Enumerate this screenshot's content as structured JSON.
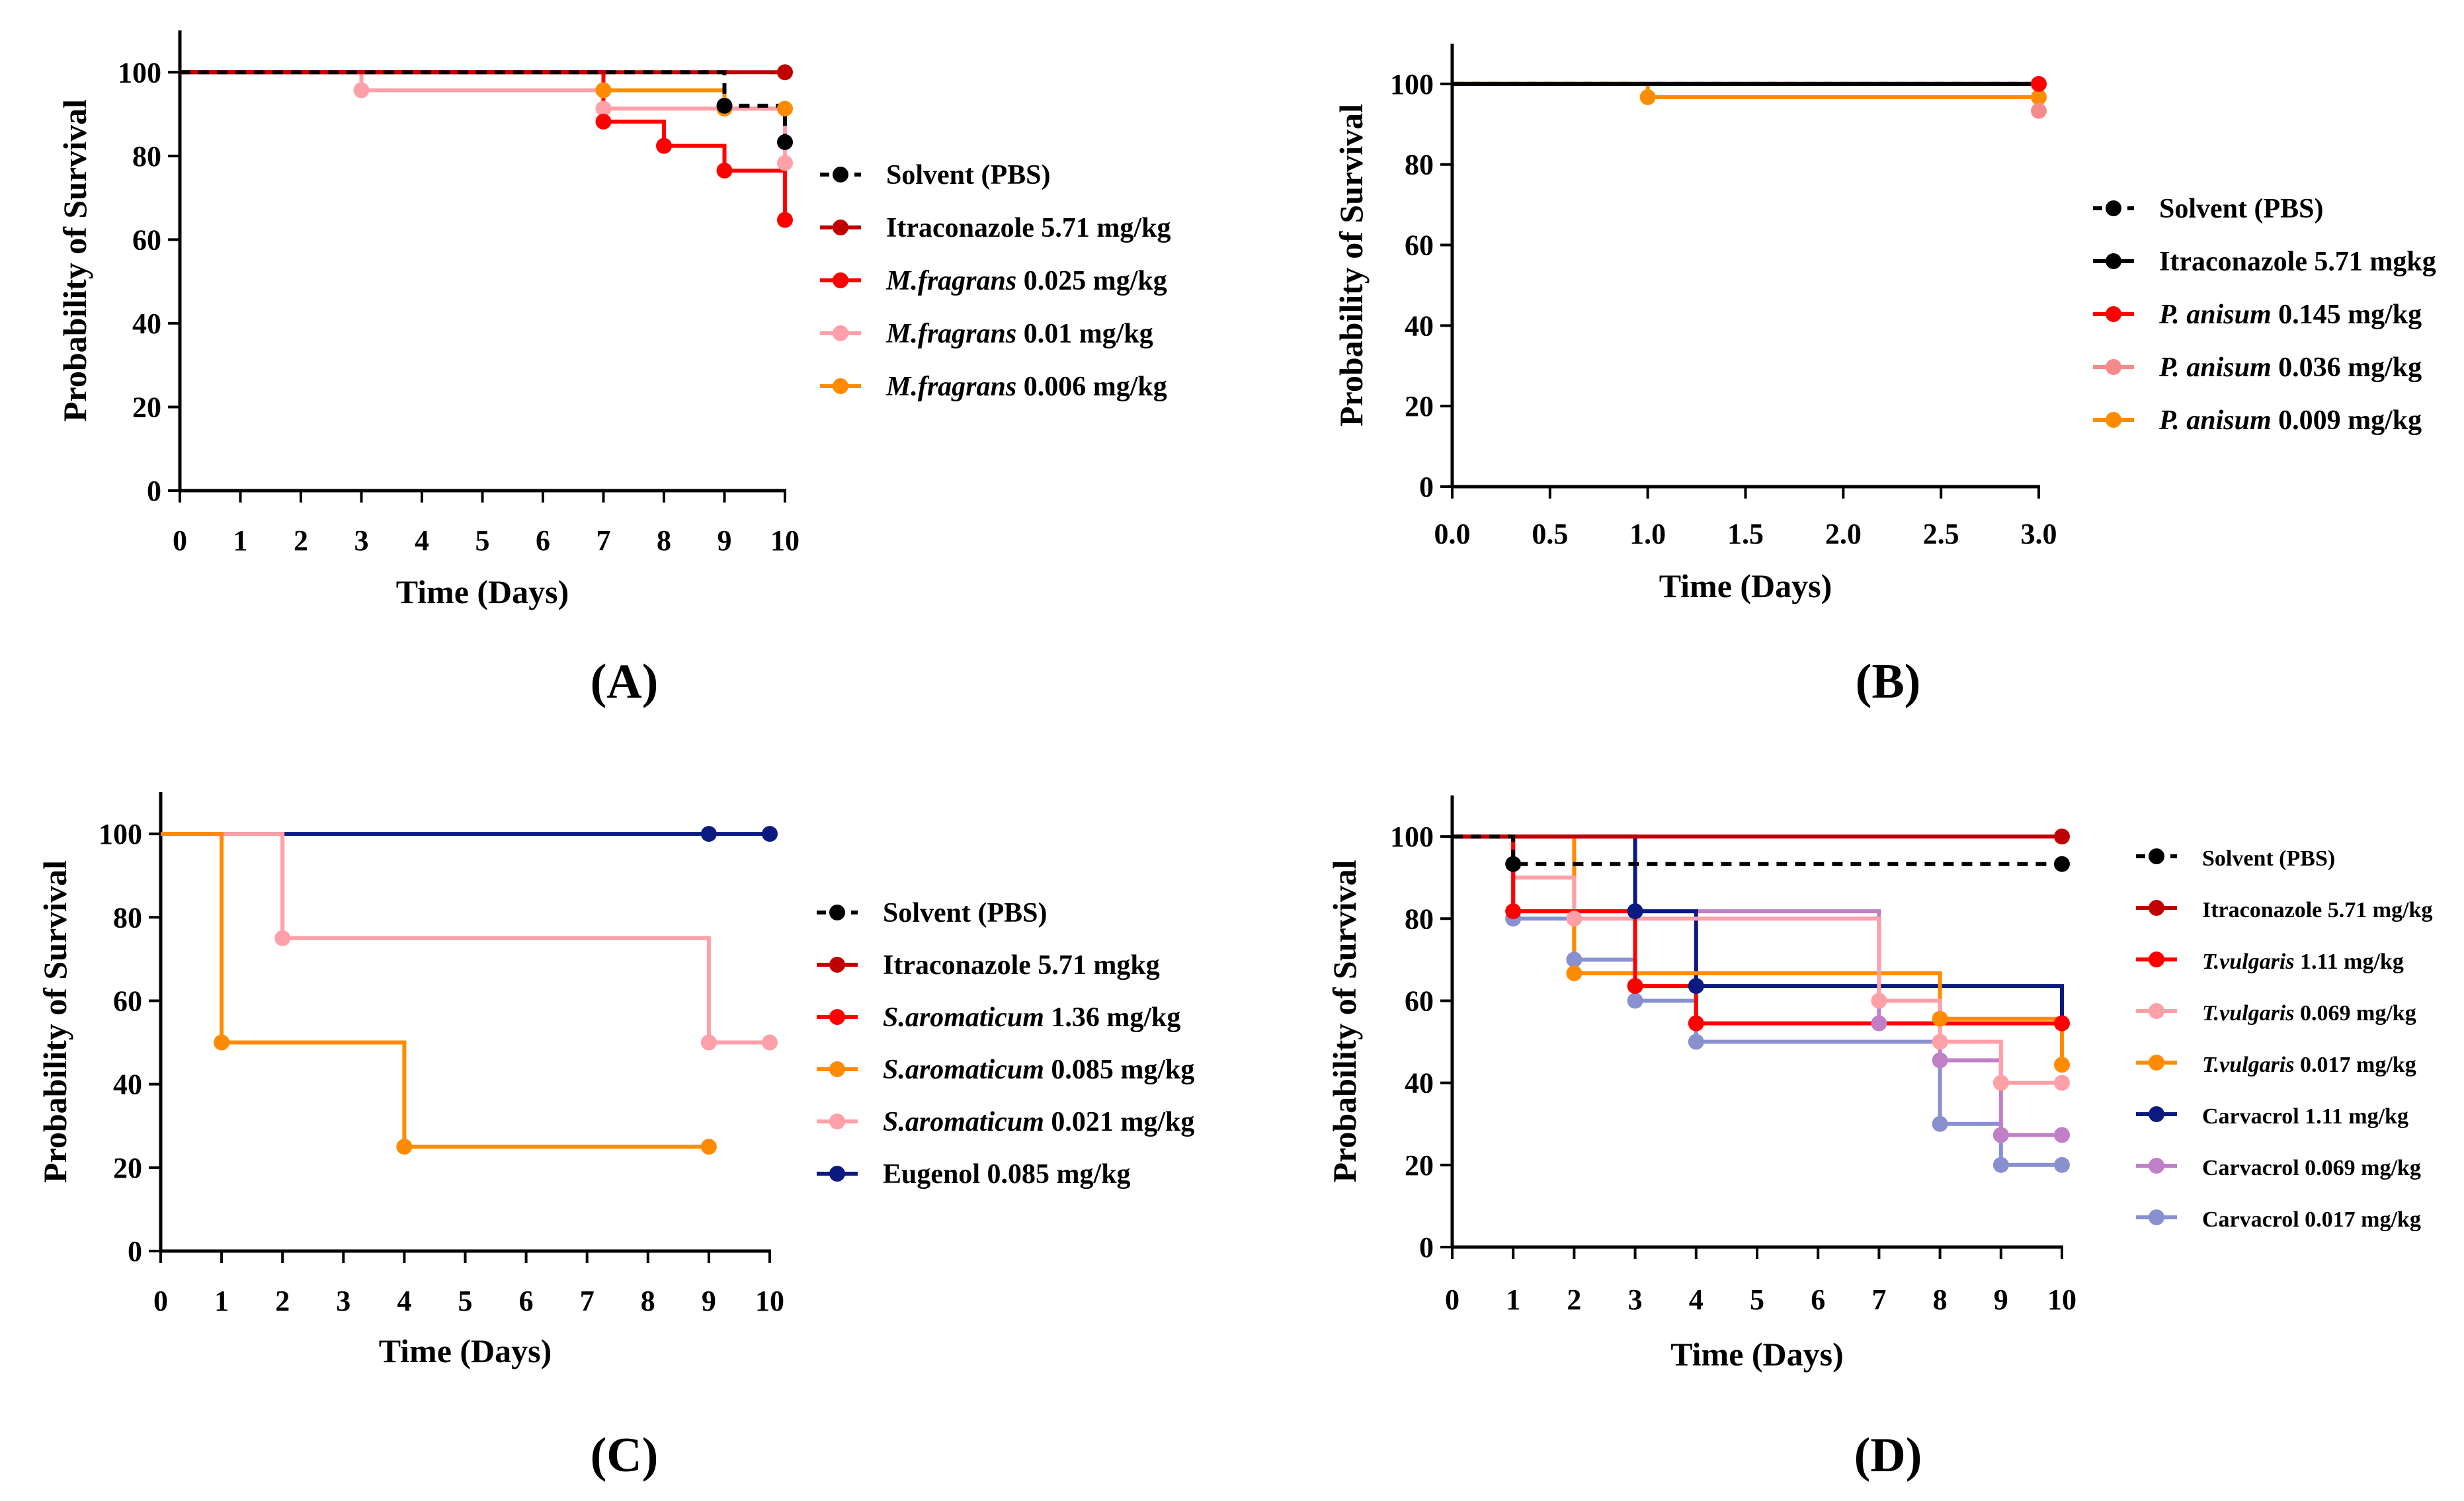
{
  "figure": {
    "panels": [
      "A",
      "B",
      "C",
      "D"
    ]
  },
  "chart_data": [
    {
      "type": "line",
      "subtype": "kaplan-meier",
      "panel_label": "(A)",
      "xlabel": "Time (Days)",
      "ylabel": "Probability of Survival",
      "xlim": [
        0,
        10
      ],
      "ylim": [
        0,
        110
      ],
      "xticks": [
        "0",
        "1",
        "2",
        "3",
        "4",
        "5",
        "6",
        "7",
        "8",
        "9",
        "10"
      ],
      "yticks": [
        "0",
        "20",
        "40",
        "60",
        "80",
        "100"
      ],
      "legend_position": "right",
      "series": [
        {
          "name": "Solvent (PBS)",
          "legend_rest": "",
          "italic": "",
          "color": "#000000",
          "dashed": true,
          "steps": [
            [
              0,
              100
            ],
            [
              9,
              100
            ],
            [
              9,
              92
            ],
            [
              10,
              92
            ],
            [
              10,
              83.3
            ]
          ],
          "markers": [
            [
              9,
              92
            ],
            [
              10,
              83.3
            ]
          ]
        },
        {
          "name": "Itraconazole 5.71 mg/kg",
          "italic": "",
          "legend_rest": "Itraconazole 5.71 mg/kg",
          "color": "#c00000",
          "dashed": false,
          "steps": [
            [
              0,
              100
            ],
            [
              10,
              100
            ]
          ],
          "markers": [
            [
              10,
              100
            ]
          ]
        },
        {
          "name": "M.fragrans 0.025 mg/kg",
          "italic": "M.fragrans",
          "legend_rest": " 0.025 mg/kg",
          "color": "#ff0000",
          "dashed": false,
          "steps": [
            [
              0,
              100
            ],
            [
              7,
              100
            ],
            [
              7,
              88.2
            ],
            [
              8,
              88.2
            ],
            [
              8,
              82.4
            ],
            [
              9,
              82.4
            ],
            [
              9,
              76.5
            ],
            [
              10,
              76.5
            ],
            [
              10,
              64.7
            ]
          ],
          "markers": [
            [
              7,
              88.2
            ],
            [
              8,
              82.4
            ],
            [
              9,
              76.5
            ],
            [
              10,
              64.7
            ]
          ]
        },
        {
          "name": "M.fragrans 0.01 mg/kg",
          "italic": "M.fragrans",
          "legend_rest": " 0.01 mg/kg",
          "color": "#ffa0a8",
          "dashed": false,
          "steps": [
            [
              0,
              100
            ],
            [
              3,
              100
            ],
            [
              3,
              95.7
            ],
            [
              7,
              95.7
            ],
            [
              7,
              91.3
            ],
            [
              10,
              91.3
            ],
            [
              10,
              78.3
            ]
          ],
          "markers": [
            [
              3,
              95.7
            ],
            [
              7,
              91.3
            ],
            [
              10,
              78.3
            ]
          ]
        },
        {
          "name": "M.fragrans 0.006 mg/kg",
          "italic": "M.fragrans",
          "legend_rest": " 0.006 mg/kg",
          "color": "#ff8c00",
          "dashed": false,
          "steps": [
            [
              0,
              100
            ],
            [
              7,
              100
            ],
            [
              7,
              95.7
            ],
            [
              9,
              95.7
            ],
            [
              9,
              91.3
            ],
            [
              10,
              91.3
            ]
          ],
          "markers": [
            [
              7,
              95.7
            ],
            [
              9,
              91.3
            ],
            [
              10,
              91.3
            ]
          ]
        }
      ]
    },
    {
      "type": "line",
      "subtype": "kaplan-meier",
      "panel_label": "(B)",
      "xlabel": "Time (Days)",
      "ylabel": "Probability of Survival",
      "xlim": [
        0,
        3
      ],
      "ylim": [
        0,
        110
      ],
      "xticks": [
        "0.0",
        "0.5",
        "1.0",
        "1.5",
        "2.0",
        "2.5",
        "3.0"
      ],
      "yticks": [
        "0",
        "20",
        "40",
        "60",
        "80",
        "100"
      ],
      "legend_position": "right",
      "series": [
        {
          "name": "Solvent (PBS)",
          "italic": "",
          "legend_rest": "Solvent (PBS)",
          "color": "#000000",
          "dashed": true,
          "steps": [
            [
              0,
              100
            ],
            [
              3,
              100
            ]
          ],
          "markers": []
        },
        {
          "name": "Itraconazole 5.71 mgkg",
          "italic": "",
          "legend_rest": "Itraconazole 5.71 mgkg",
          "color": "#000000",
          "dashed": false,
          "steps": [
            [
              0,
              100
            ],
            [
              3,
              100
            ]
          ],
          "markers": []
        },
        {
          "name": "P. anisum 0.145 mg/kg",
          "italic": "P. anisum",
          "legend_rest": " 0.145 mg/kg",
          "color": "#ff0000",
          "dashed": false,
          "steps": [
            [
              0,
              100
            ],
            [
              3,
              100
            ]
          ],
          "markers": [
            [
              3,
              100
            ]
          ]
        },
        {
          "name": "P. anisum 0.036 mg/kg",
          "italic": "P. anisum",
          "legend_rest": " 0.036 mg/kg",
          "color": "#f58a8a",
          "dashed": false,
          "steps": [
            [
              0,
              100
            ],
            [
              3,
              100
            ],
            [
              3,
              93.3
            ]
          ],
          "markers": [
            [
              3,
              93.3
            ]
          ]
        },
        {
          "name": "P. anisum 0.009 mg/kg",
          "italic": "P. anisum",
          "legend_rest": " 0.009 mg/kg",
          "color": "#ff8c00",
          "dashed": false,
          "steps": [
            [
              0,
              100
            ],
            [
              1,
              100
            ],
            [
              1,
              96.7
            ],
            [
              3,
              96.7
            ]
          ],
          "markers": [
            [
              1,
              96.7
            ],
            [
              3,
              96.7
            ]
          ]
        }
      ]
    },
    {
      "type": "line",
      "subtype": "kaplan-meier",
      "panel_label": "(C)",
      "xlabel": "Time (Days)",
      "ylabel": "Probability of Survival",
      "xlim": [
        0,
        10
      ],
      "ylim": [
        0,
        110
      ],
      "xticks": [
        "0",
        "1",
        "2",
        "3",
        "4",
        "5",
        "6",
        "7",
        "8",
        "9",
        "10"
      ],
      "yticks": [
        "0",
        "20",
        "40",
        "60",
        "80",
        "100"
      ],
      "legend_position": "right",
      "series": [
        {
          "name": "Solvent (PBS)",
          "italic": "",
          "legend_rest": "Solvent (PBS)",
          "color": "#000000",
          "dashed": true,
          "steps": [],
          "markers": []
        },
        {
          "name": "Itraconazole 5.71 mgkg",
          "italic": "",
          "legend_rest": "Itraconazole 5.71 mgkg",
          "color": "#c00000",
          "dashed": false,
          "steps": [],
          "markers": []
        },
        {
          "name": "S.aromaticum 1.36 mg/kg",
          "italic": "S.aromaticum",
          "legend_rest": " 1.36 mg/kg",
          "color": "#ff0000",
          "dashed": false,
          "steps": [],
          "markers": []
        },
        {
          "name": "S.aromaticum 0.085 mg/kg",
          "italic": "S.aromaticum",
          "legend_rest": " 0.085 mg/kg",
          "color": "#ff8c00",
          "dashed": false,
          "steps": [
            [
              0,
              100
            ],
            [
              1,
              100
            ],
            [
              1,
              50
            ],
            [
              4,
              50
            ],
            [
              4,
              25
            ],
            [
              9,
              25
            ]
          ],
          "markers": [
            [
              1,
              50
            ],
            [
              4,
              25
            ],
            [
              9,
              25
            ]
          ]
        },
        {
          "name": "S.aromaticum 0.021 mg/kg",
          "italic": "S.aromaticum",
          "legend_rest": " 0.021 mg/kg",
          "color": "#ffa0a8",
          "dashed": false,
          "steps": [
            [
              0,
              100
            ],
            [
              2,
              100
            ],
            [
              2,
              75
            ],
            [
              9,
              75
            ],
            [
              9,
              50
            ],
            [
              10,
              50
            ]
          ],
          "markers": [
            [
              2,
              75
            ],
            [
              9,
              50
            ],
            [
              10,
              50
            ]
          ]
        },
        {
          "name": "Eugenol 0.085 mg/kg",
          "italic": "",
          "legend_rest": "Eugenol 0.085 mg/kg",
          "color": "#0b1a80",
          "dashed": false,
          "steps": [
            [
              0,
              100
            ],
            [
              10,
              100
            ]
          ],
          "markers": [
            [
              9,
              100
            ],
            [
              10,
              100
            ]
          ]
        }
      ]
    },
    {
      "type": "line",
      "subtype": "kaplan-meier",
      "panel_label": "(D)",
      "xlabel": "Time (Days)",
      "ylabel": "Probability of Survival",
      "xlim": [
        0,
        10
      ],
      "ylim": [
        0,
        110
      ],
      "xticks": [
        "0",
        "1",
        "2",
        "3",
        "4",
        "5",
        "6",
        "7",
        "8",
        "9",
        "10"
      ],
      "yticks": [
        "0",
        "20",
        "40",
        "60",
        "80",
        "100"
      ],
      "legend_position": "right",
      "series": [
        {
          "name": "Solvent (PBS)",
          "italic": "",
          "legend_rest": "Solvent (PBS)",
          "color": "#000000",
          "dashed": true,
          "steps": [
            [
              0,
              100
            ],
            [
              1,
              100
            ],
            [
              1,
              93.3
            ],
            [
              10,
              93.3
            ]
          ],
          "markers": [
            [
              1,
              93.3
            ],
            [
              10,
              93.3
            ]
          ]
        },
        {
          "name": "Itraconazole 5.71 mg/kg",
          "italic": "",
          "legend_rest": "Itraconazole 5.71 mg/kg",
          "color": "#c00000",
          "dashed": false,
          "steps": [
            [
              0,
              100
            ],
            [
              10,
              100
            ]
          ],
          "markers": [
            [
              10,
              100
            ]
          ]
        },
        {
          "name": "T.vulgaris 1.11 mg/kg",
          "italic": "T.vulgaris",
          "legend_rest": " 1.11 mg/kg",
          "color": "#ff0000",
          "dashed": false,
          "steps": [
            [
              0,
              100
            ],
            [
              1,
              100
            ],
            [
              1,
              81.8
            ],
            [
              3,
              81.8
            ],
            [
              3,
              63.6
            ],
            [
              4,
              63.6
            ],
            [
              4,
              54.5
            ],
            [
              10,
              54.5
            ]
          ],
          "markers": [
            [
              1,
              81.8
            ],
            [
              3,
              63.6
            ],
            [
              4,
              54.5
            ],
            [
              10,
              54.5
            ]
          ]
        },
        {
          "name": "T.vulgaris 0.069 mg/kg",
          "italic": "T.vulgaris",
          "legend_rest": " 0.069 mg/kg",
          "color": "#ffa0a8",
          "dashed": false,
          "steps": [
            [
              0,
              100
            ],
            [
              1,
              100
            ],
            [
              1,
              90
            ],
            [
              2,
              90
            ],
            [
              2,
              80
            ],
            [
              7,
              80
            ],
            [
              7,
              60
            ],
            [
              8,
              60
            ],
            [
              8,
              50
            ],
            [
              9,
              50
            ],
            [
              9,
              40
            ],
            [
              10,
              40
            ]
          ],
          "markers": [
            [
              2,
              80
            ],
            [
              7,
              60
            ],
            [
              8,
              50
            ],
            [
              9,
              40
            ],
            [
              10,
              40
            ]
          ]
        },
        {
          "name": "T.vulgaris 0.017 mg/kg",
          "italic": "T.vulgaris",
          "legend_rest": " 0.017 mg/kg",
          "color": "#ff8c00",
          "dashed": false,
          "steps": [
            [
              0,
              100
            ],
            [
              2,
              100
            ],
            [
              2,
              66.7
            ],
            [
              8,
              66.7
            ],
            [
              8,
              55.6
            ],
            [
              10,
              55.6
            ],
            [
              10,
              44.4
            ]
          ],
          "markers": [
            [
              2,
              66.7
            ],
            [
              8,
              55.6
            ],
            [
              10,
              44.4
            ]
          ]
        },
        {
          "name": "Carvacrol 1.11 mg/kg",
          "italic": "",
          "legend_rest": "Carvacrol 1.11 mg/kg",
          "color": "#0b1a80",
          "dashed": false,
          "steps": [
            [
              0,
              100
            ],
            [
              3,
              100
            ],
            [
              3,
              81.8
            ],
            [
              4,
              81.8
            ],
            [
              4,
              63.6
            ],
            [
              10,
              63.6
            ],
            [
              10,
              54.5
            ]
          ],
          "markers": [
            [
              3,
              81.8
            ],
            [
              4,
              63.6
            ]
          ]
        },
        {
          "name": "Carvacrol 0.069 mg/kg",
          "italic": "",
          "legend_rest": "Carvacrol 0.069 mg/kg",
          "color": "#c080c8",
          "dashed": false,
          "steps": [
            [
              0,
              100
            ],
            [
              1,
              100
            ],
            [
              1,
              81.8
            ],
            [
              7,
              81.8
            ],
            [
              7,
              54.5
            ],
            [
              8,
              54.5
            ],
            [
              8,
              45.5
            ],
            [
              9,
              45.5
            ],
            [
              9,
              27.3
            ],
            [
              10,
              27.3
            ]
          ],
          "markers": [
            [
              7,
              54.5
            ],
            [
              8,
              45.5
            ],
            [
              9,
              27.3
            ],
            [
              10,
              27.3
            ]
          ]
        },
        {
          "name": "Carvacrol 0.017 mg/kg",
          "italic": "",
          "legend_rest": "Carvacrol 0.017 mg/kg",
          "color": "#8890d0",
          "dashed": false,
          "steps": [
            [
              0,
              100
            ],
            [
              1,
              100
            ],
            [
              1,
              80
            ],
            [
              2,
              80
            ],
            [
              2,
              70
            ],
            [
              3,
              70
            ],
            [
              3,
              60
            ],
            [
              4,
              60
            ],
            [
              4,
              50
            ],
            [
              8,
              50
            ],
            [
              8,
              30
            ],
            [
              9,
              30
            ],
            [
              9,
              20
            ],
            [
              10,
              20
            ]
          ],
          "markers": [
            [
              1,
              80
            ],
            [
              2,
              70
            ],
            [
              3,
              60
            ],
            [
              4,
              50
            ],
            [
              8,
              30
            ],
            [
              9,
              20
            ],
            [
              10,
              20
            ]
          ]
        }
      ]
    }
  ]
}
